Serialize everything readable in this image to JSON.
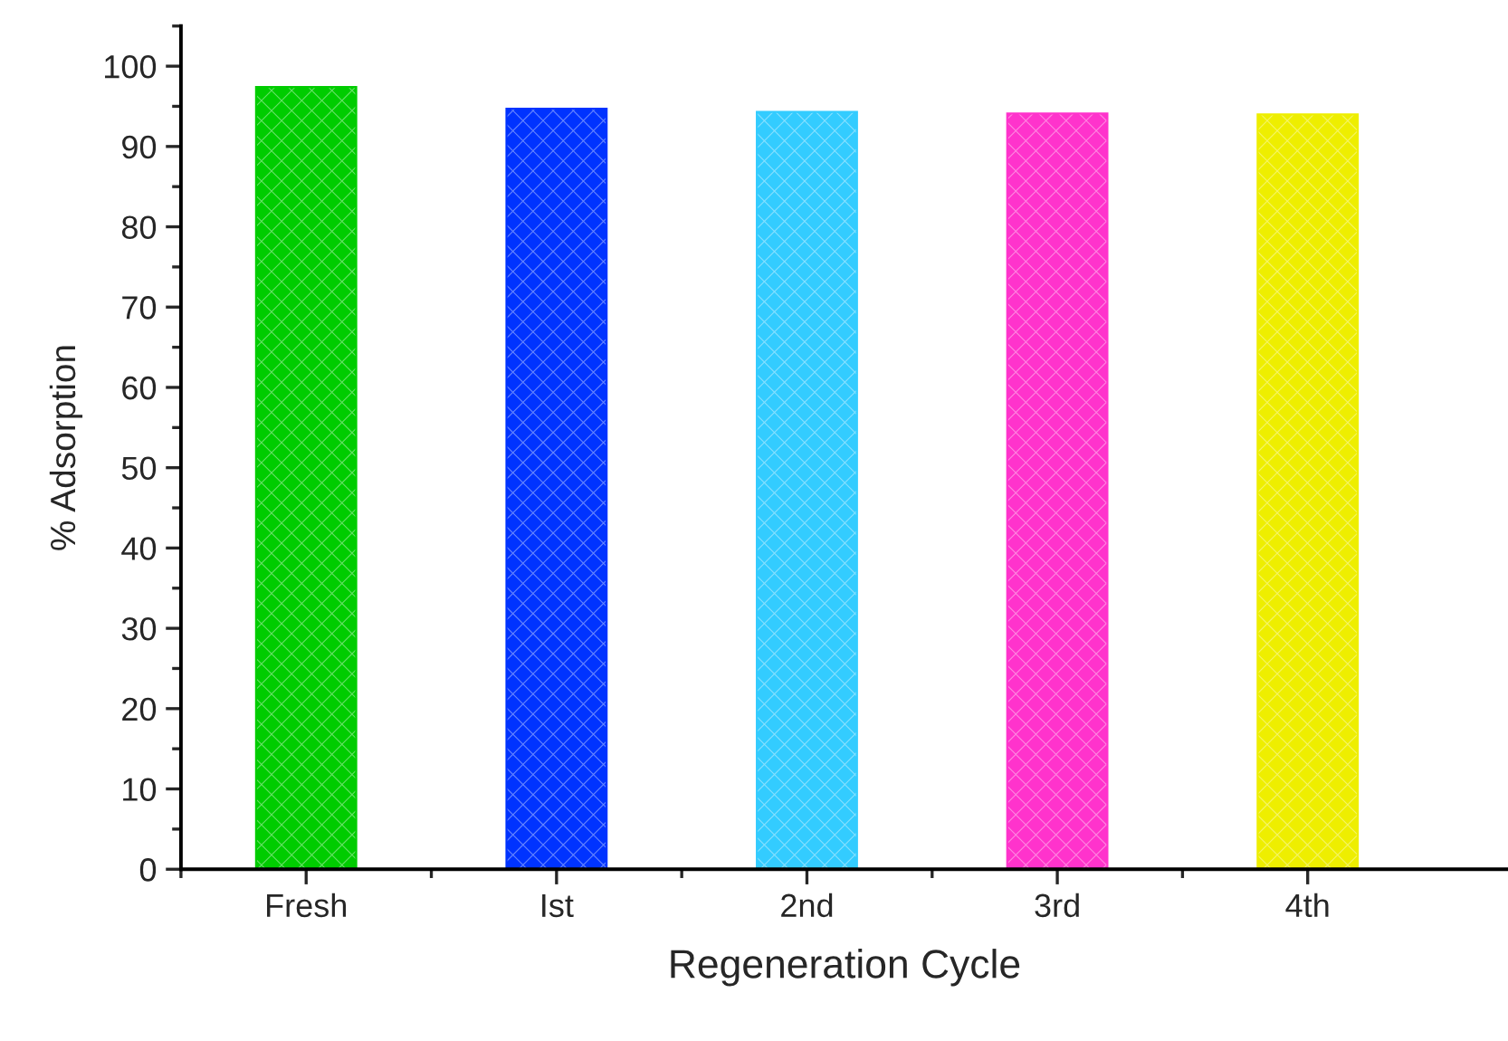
{
  "chart_data": {
    "type": "bar",
    "xlabel": "Regeneration Cycle",
    "ylabel": "% Adsorption",
    "categories": [
      "Fresh",
      "Ist",
      "2nd",
      "3rd",
      "4th"
    ],
    "values": [
      97.4,
      94.7,
      94.3,
      94.1,
      94.0
    ],
    "colors": [
      "#00cc00",
      "#0033ff",
      "#33ccff",
      "#ff33cc",
      "#eeee00"
    ],
    "ylim": [
      0,
      105
    ],
    "yticks": [
      0,
      10,
      20,
      30,
      40,
      50,
      60,
      70,
      80,
      90,
      100
    ],
    "grid": false
  }
}
